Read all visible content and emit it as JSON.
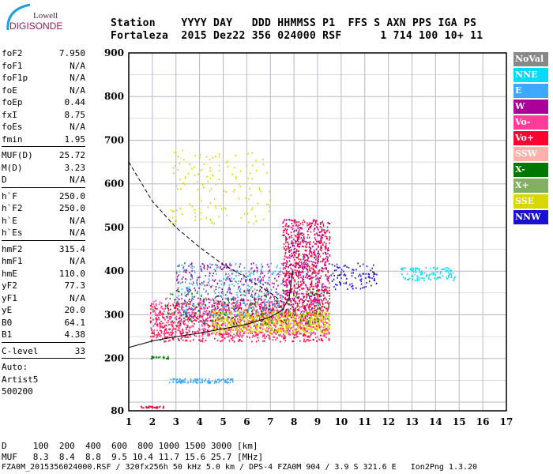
{
  "logo": {
    "line1": "Lowell",
    "line2": "DIGISONDE"
  },
  "header": {
    "labels": "Station    YYYY DAY   DDD HHMMSS P1  FFS S AXN PPS IGA PS",
    "values": "Fortaleza  2015 Dez22 356 024000 RSF      1 714 100 10+ 11"
  },
  "params": {
    "g1": [
      [
        "foF2",
        "7.950"
      ],
      [
        "foF1",
        "N/A"
      ],
      [
        "foF1p",
        "N/A"
      ],
      [
        "foE",
        "N/A"
      ],
      [
        "foEp",
        "0.44"
      ],
      [
        "fxI",
        "8.75"
      ],
      [
        "foEs",
        "N/A"
      ],
      [
        "fmin",
        "1.95"
      ]
    ],
    "g2": [
      [
        "MUF(D)",
        "25.72"
      ],
      [
        "M(D)",
        "3.23"
      ],
      [
        "D",
        "N/A"
      ]
    ],
    "g3": [
      [
        "h`F",
        "250.0"
      ],
      [
        "h`F2",
        "250.0"
      ],
      [
        "h`E",
        "N/A"
      ],
      [
        "h`Es",
        "N/A"
      ]
    ],
    "g4": [
      [
        "hmF2",
        "315.4"
      ],
      [
        "hmF1",
        "N/A"
      ],
      [
        "hmE",
        "110.0"
      ],
      [
        "yF2",
        "77.3"
      ],
      [
        "yF1",
        "N/A"
      ],
      [
        "yE",
        "20.0"
      ],
      [
        "B0",
        "64.1"
      ],
      [
        "B1",
        "4.38"
      ]
    ],
    "g5": [
      [
        "C-level",
        "33"
      ]
    ],
    "auto": [
      "Auto:",
      "Artist5",
      "500200"
    ]
  },
  "legend": [
    {
      "label": "NoVal",
      "color": "#888888"
    },
    {
      "label": "NNE",
      "color": "#00dcff"
    },
    {
      "label": "E",
      "color": "#3ca8ff"
    },
    {
      "label": "W",
      "color": "#aa0099"
    },
    {
      "label": "Vo-",
      "color": "#ff3c9a"
    },
    {
      "label": "Vo+",
      "color": "#ff0033"
    },
    {
      "label": "SSW",
      "color": "#ffb0a8"
    },
    {
      "label": "X-",
      "color": "#007800"
    },
    {
      "label": "X+",
      "color": "#80b060"
    },
    {
      "label": "SSE",
      "color": "#d8d800"
    },
    {
      "label": "NNW",
      "color": "#1a10d0"
    }
  ],
  "footer": {
    "d_row": "D     100  200  400  600  800 1000 1500 3000 [km]",
    "muf_row": "MUF   8.3  8.4  8.8  9.5 10.4 11.7 15.6 25.7 [MHz]",
    "info": "FZA0M_2015356024000.RSF / 320fx256h 50 kHz 5.0 km / DPS-4 FZA0M 904 / 3.9 S 321.6 E   Ion2Png 1.3.20"
  },
  "chart_data": {
    "type": "scatter",
    "xlim": [
      1,
      17
    ],
    "ylim": [
      80,
      900
    ],
    "xticks": [
      "1",
      "2",
      "3",
      "4",
      "5",
      "6",
      "7",
      "8",
      "9",
      "10",
      "11",
      "12",
      "13",
      "14",
      "15",
      "16",
      "17"
    ],
    "yticks": [
      "80",
      "200",
      "300",
      "400",
      "500",
      "600",
      "700",
      "800",
      "900"
    ],
    "grid": true,
    "clusters": [
      {
        "f": [
          1.9,
          9.5
        ],
        "h": [
          240,
          330
        ],
        "color": "#ff0033",
        "n": 900
      },
      {
        "f": [
          2.0,
          9.5
        ],
        "h": [
          250,
          340
        ],
        "color": "#ff3c9a",
        "n": 700
      },
      {
        "f": [
          3.0,
          9.0
        ],
        "h": [
          280,
          420
        ],
        "color": "#aa0099",
        "n": 500
      },
      {
        "f": [
          4.5,
          9.5
        ],
        "h": [
          260,
          310
        ],
        "color": "#d8d800",
        "n": 600
      },
      {
        "f": [
          7.5,
          9.5
        ],
        "h": [
          330,
          520
        ],
        "color": "#ff0033",
        "n": 500
      },
      {
        "f": [
          7.5,
          9.5
        ],
        "h": [
          330,
          520
        ],
        "color": "#aa0099",
        "n": 300
      },
      {
        "f": [
          3.0,
          7.5
        ],
        "h": [
          300,
          420
        ],
        "color": "#3ca8ff",
        "n": 300
      },
      {
        "f": [
          2.5,
          9.5
        ],
        "h": [
          280,
          360
        ],
        "color": "#007800",
        "n": 200
      },
      {
        "f": [
          2.7,
          7.0
        ],
        "h": [
          510,
          680
        ],
        "color": "#d8d800",
        "n": 150
      },
      {
        "f": [
          9.5,
          11.5
        ],
        "h": [
          360,
          420
        ],
        "color": "#1a10d0",
        "n": 100
      },
      {
        "f": [
          12.5,
          14.8
        ],
        "h": [
          380,
          410
        ],
        "color": "#00dcff",
        "n": 120
      },
      {
        "f": [
          2.7,
          5.4
        ],
        "h": [
          145,
          155
        ],
        "color": "#3ca8ff",
        "n": 120
      },
      {
        "f": [
          1.5,
          2.5
        ],
        "h": [
          88,
          92
        ],
        "color": "#ff0033",
        "n": 30
      },
      {
        "f": [
          1.9,
          2.7
        ],
        "h": [
          200,
          206
        ],
        "color": "#007800",
        "n": 20
      }
    ],
    "muf_curve": [
      [
        1,
        650
      ],
      [
        2,
        560
      ],
      [
        3,
        500
      ],
      [
        4,
        455
      ],
      [
        5,
        415
      ],
      [
        6,
        385
      ],
      [
        7,
        350
      ],
      [
        7.5,
        330
      ]
    ],
    "profile_curve": [
      [
        1,
        225
      ],
      [
        2,
        240
      ],
      [
        3,
        250
      ],
      [
        4,
        258
      ],
      [
        5,
        268
      ],
      [
        6,
        278
      ],
      [
        7,
        295
      ],
      [
        7.5,
        310
      ],
      [
        7.8,
        340
      ],
      [
        7.95,
        400
      ]
    ]
  }
}
